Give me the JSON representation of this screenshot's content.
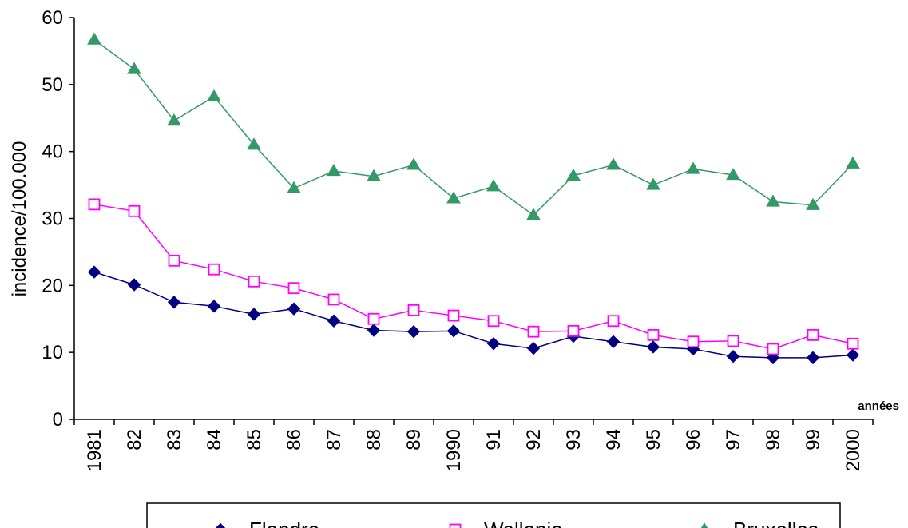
{
  "chart_data": {
    "type": "line",
    "title": "",
    "ylabel": "incidence/100.000",
    "xlabel": "années",
    "ylim": [
      0,
      60
    ],
    "yticks": [
      "0",
      "10",
      "20",
      "30",
      "40",
      "50",
      "60"
    ],
    "categories": [
      "1981",
      "82",
      "83",
      "84",
      "85",
      "86",
      "87",
      "88",
      "89",
      "1990",
      "91",
      "92",
      "93",
      "94",
      "95",
      "96",
      "97",
      "98",
      "99",
      "2000"
    ],
    "grid": false,
    "legend_position": "bottom",
    "series": [
      {
        "name": "Flandre",
        "color": "#000080",
        "marker": "diamond",
        "values": [
          22.0,
          20.1,
          17.5,
          16.9,
          15.7,
          16.5,
          14.7,
          13.3,
          13.1,
          13.2,
          11.3,
          10.6,
          12.4,
          11.6,
          10.8,
          10.5,
          9.4,
          9.2,
          9.2,
          9.6
        ]
      },
      {
        "name": "Wallonie",
        "color": "#ff00ff",
        "marker": "square-open",
        "values": [
          32.1,
          31.1,
          23.7,
          22.4,
          20.6,
          19.6,
          17.9,
          15.0,
          16.3,
          15.5,
          14.7,
          13.1,
          13.2,
          14.7,
          12.6,
          11.6,
          11.7,
          10.5,
          12.6,
          11.3
        ]
      },
      {
        "name": "Bruxelles",
        "color": "#339966",
        "marker": "triangle",
        "values": [
          56.7,
          52.3,
          44.6,
          48.2,
          41.0,
          34.5,
          37.1,
          36.3,
          38.0,
          33.0,
          34.8,
          30.5,
          36.4,
          38.0,
          35.0,
          37.4,
          36.5,
          32.5,
          32.0,
          38.2
        ]
      }
    ]
  }
}
